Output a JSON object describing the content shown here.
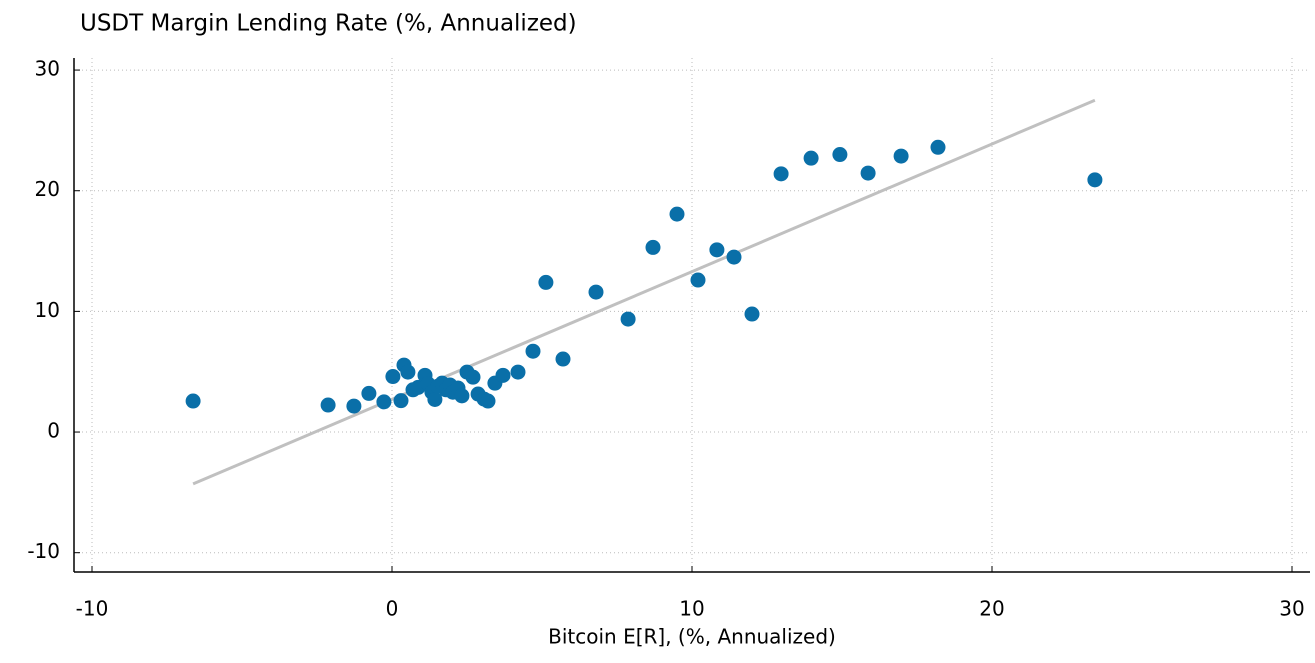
{
  "chart_data": {
    "type": "scatter",
    "title": "USDT Margin Lending Rate (%, Annualized)",
    "x_label": "Bitcoin E[R], (%, Annualized)",
    "x": [
      -6.63,
      -2.13,
      -1.27,
      -0.77,
      -0.27,
      0.03,
      0.3,
      0.4,
      0.53,
      0.7,
      0.87,
      1.1,
      1.2,
      1.33,
      1.43,
      1.53,
      1.67,
      1.8,
      1.93,
      2.03,
      2.2,
      2.33,
      2.5,
      2.7,
      2.87,
      3.07,
      3.2,
      3.43,
      3.7,
      4.2,
      4.7,
      5.13,
      5.7,
      6.8,
      7.87,
      8.7,
      9.5,
      10.2,
      10.83,
      11.4,
      12.0,
      12.97,
      13.97,
      14.93,
      15.87,
      16.97,
      18.2,
      23.43
    ],
    "values": [
      2.57,
      2.24,
      2.15,
      3.2,
      2.5,
      4.6,
      2.6,
      5.55,
      4.97,
      3.5,
      3.7,
      4.7,
      4.0,
      3.3,
      2.7,
      3.8,
      4.05,
      3.5,
      3.9,
      3.3,
      3.65,
      3.0,
      4.97,
      4.55,
      3.15,
      2.73,
      2.57,
      4.05,
      4.7,
      4.97,
      6.7,
      12.4,
      6.05,
      11.6,
      9.36,
      15.3,
      18.06,
      12.6,
      15.1,
      14.5,
      9.78,
      21.4,
      22.7,
      23.0,
      21.46,
      22.87,
      23.6,
      20.9
    ],
    "color": "#0a6fa8",
    "trendline": {
      "x": [
        -6.63,
        23.43
      ],
      "values": [
        -4.3,
        27.5
      ],
      "color": "#c0c0c0"
    },
    "xlim": [
      -10.6,
      30.6
    ],
    "ylim": [
      -11.6,
      31
    ],
    "xticks": [
      -10,
      0,
      10,
      20,
      30
    ],
    "yticks": [
      -10,
      0,
      10,
      20,
      30
    ],
    "grid": true
  }
}
